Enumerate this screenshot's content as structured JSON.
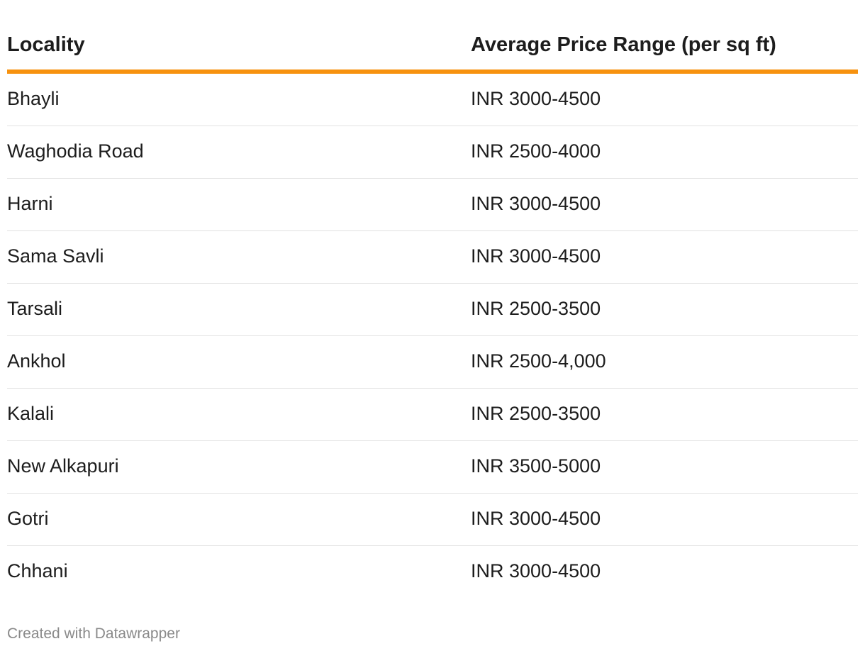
{
  "chart_data": {
    "type": "table",
    "columns": [
      "Locality",
      "Average Price Range (per sq ft)"
    ],
    "rows": [
      [
        "Bhayli",
        "INR 3000-4500"
      ],
      [
        "Waghodia Road",
        "INR 2500-4000"
      ],
      [
        "Harni",
        "INR 3000-4500"
      ],
      [
        "Sama Savli",
        "INR 3000-4500"
      ],
      [
        "Tarsali",
        "INR 2500-3500"
      ],
      [
        "Ankhol",
        "INR 2500-4,000"
      ],
      [
        "Kalali",
        "INR 2500-3500"
      ],
      [
        "New Alkapuri",
        "INR 3500-5000"
      ],
      [
        "Gotri",
        "INR 3000-4500"
      ],
      [
        "Chhani",
        "INR 3000-4500"
      ]
    ]
  },
  "footer": "Created with Datawrapper",
  "colors": {
    "header_rule": "#f7920f",
    "row_rule": "#e2e2e2",
    "text": "#1d1d1d",
    "footer_text": "#8a8a8a"
  }
}
